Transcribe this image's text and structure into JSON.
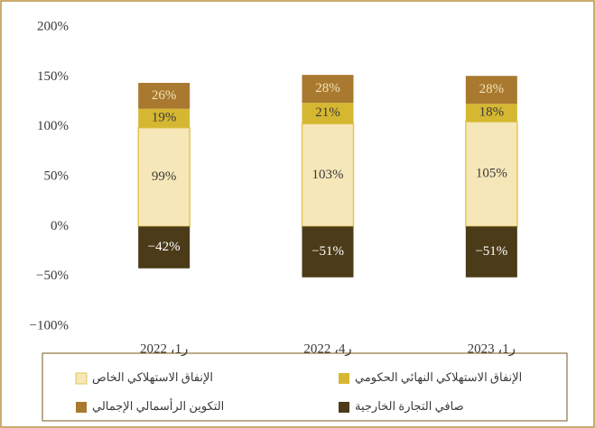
{
  "chart_data": {
    "type": "stacked_bar",
    "categories": [
      "ر1، 2022",
      "ر4، 2022",
      "ر1، 2023"
    ],
    "series": [
      {
        "name": "الإنفاق الاستهلاكي الخاص",
        "color": "#f6e7b9",
        "values": [
          99,
          103,
          105
        ],
        "value_labels": [
          "99%",
          "103%",
          "105%"
        ]
      },
      {
        "name": "الإنفاق الاستهلاكي النهائي الحكومي",
        "color": "#d6b731",
        "values": [
          19,
          21,
          18
        ],
        "value_labels": [
          "19%",
          "21%",
          "18%"
        ]
      },
      {
        "name": "التكوين الرأسمالي الإجمالي",
        "color": "#a9792f",
        "values": [
          26,
          28,
          28
        ],
        "value_labels": [
          "26%",
          "28%",
          "28%"
        ]
      },
      {
        "name": "صافي التجارة الخارجية",
        "color": "#4b3b19",
        "values": [
          -42,
          -51,
          -51
        ],
        "value_labels": [
          "−42%",
          "−51%",
          "−51%"
        ]
      }
    ],
    "ylim": [
      -100,
      200
    ],
    "yticks": [
      {
        "value": -100,
        "label": "−100%"
      },
      {
        "value": -50,
        "label": "−50%"
      },
      {
        "value": 0,
        "label": "0%"
      },
      {
        "value": 50,
        "label": "50%"
      },
      {
        "value": 100,
        "label": "100%"
      },
      {
        "value": 150,
        "label": "150%"
      },
      {
        "value": 200,
        "label": "200%"
      }
    ],
    "grid": false
  }
}
